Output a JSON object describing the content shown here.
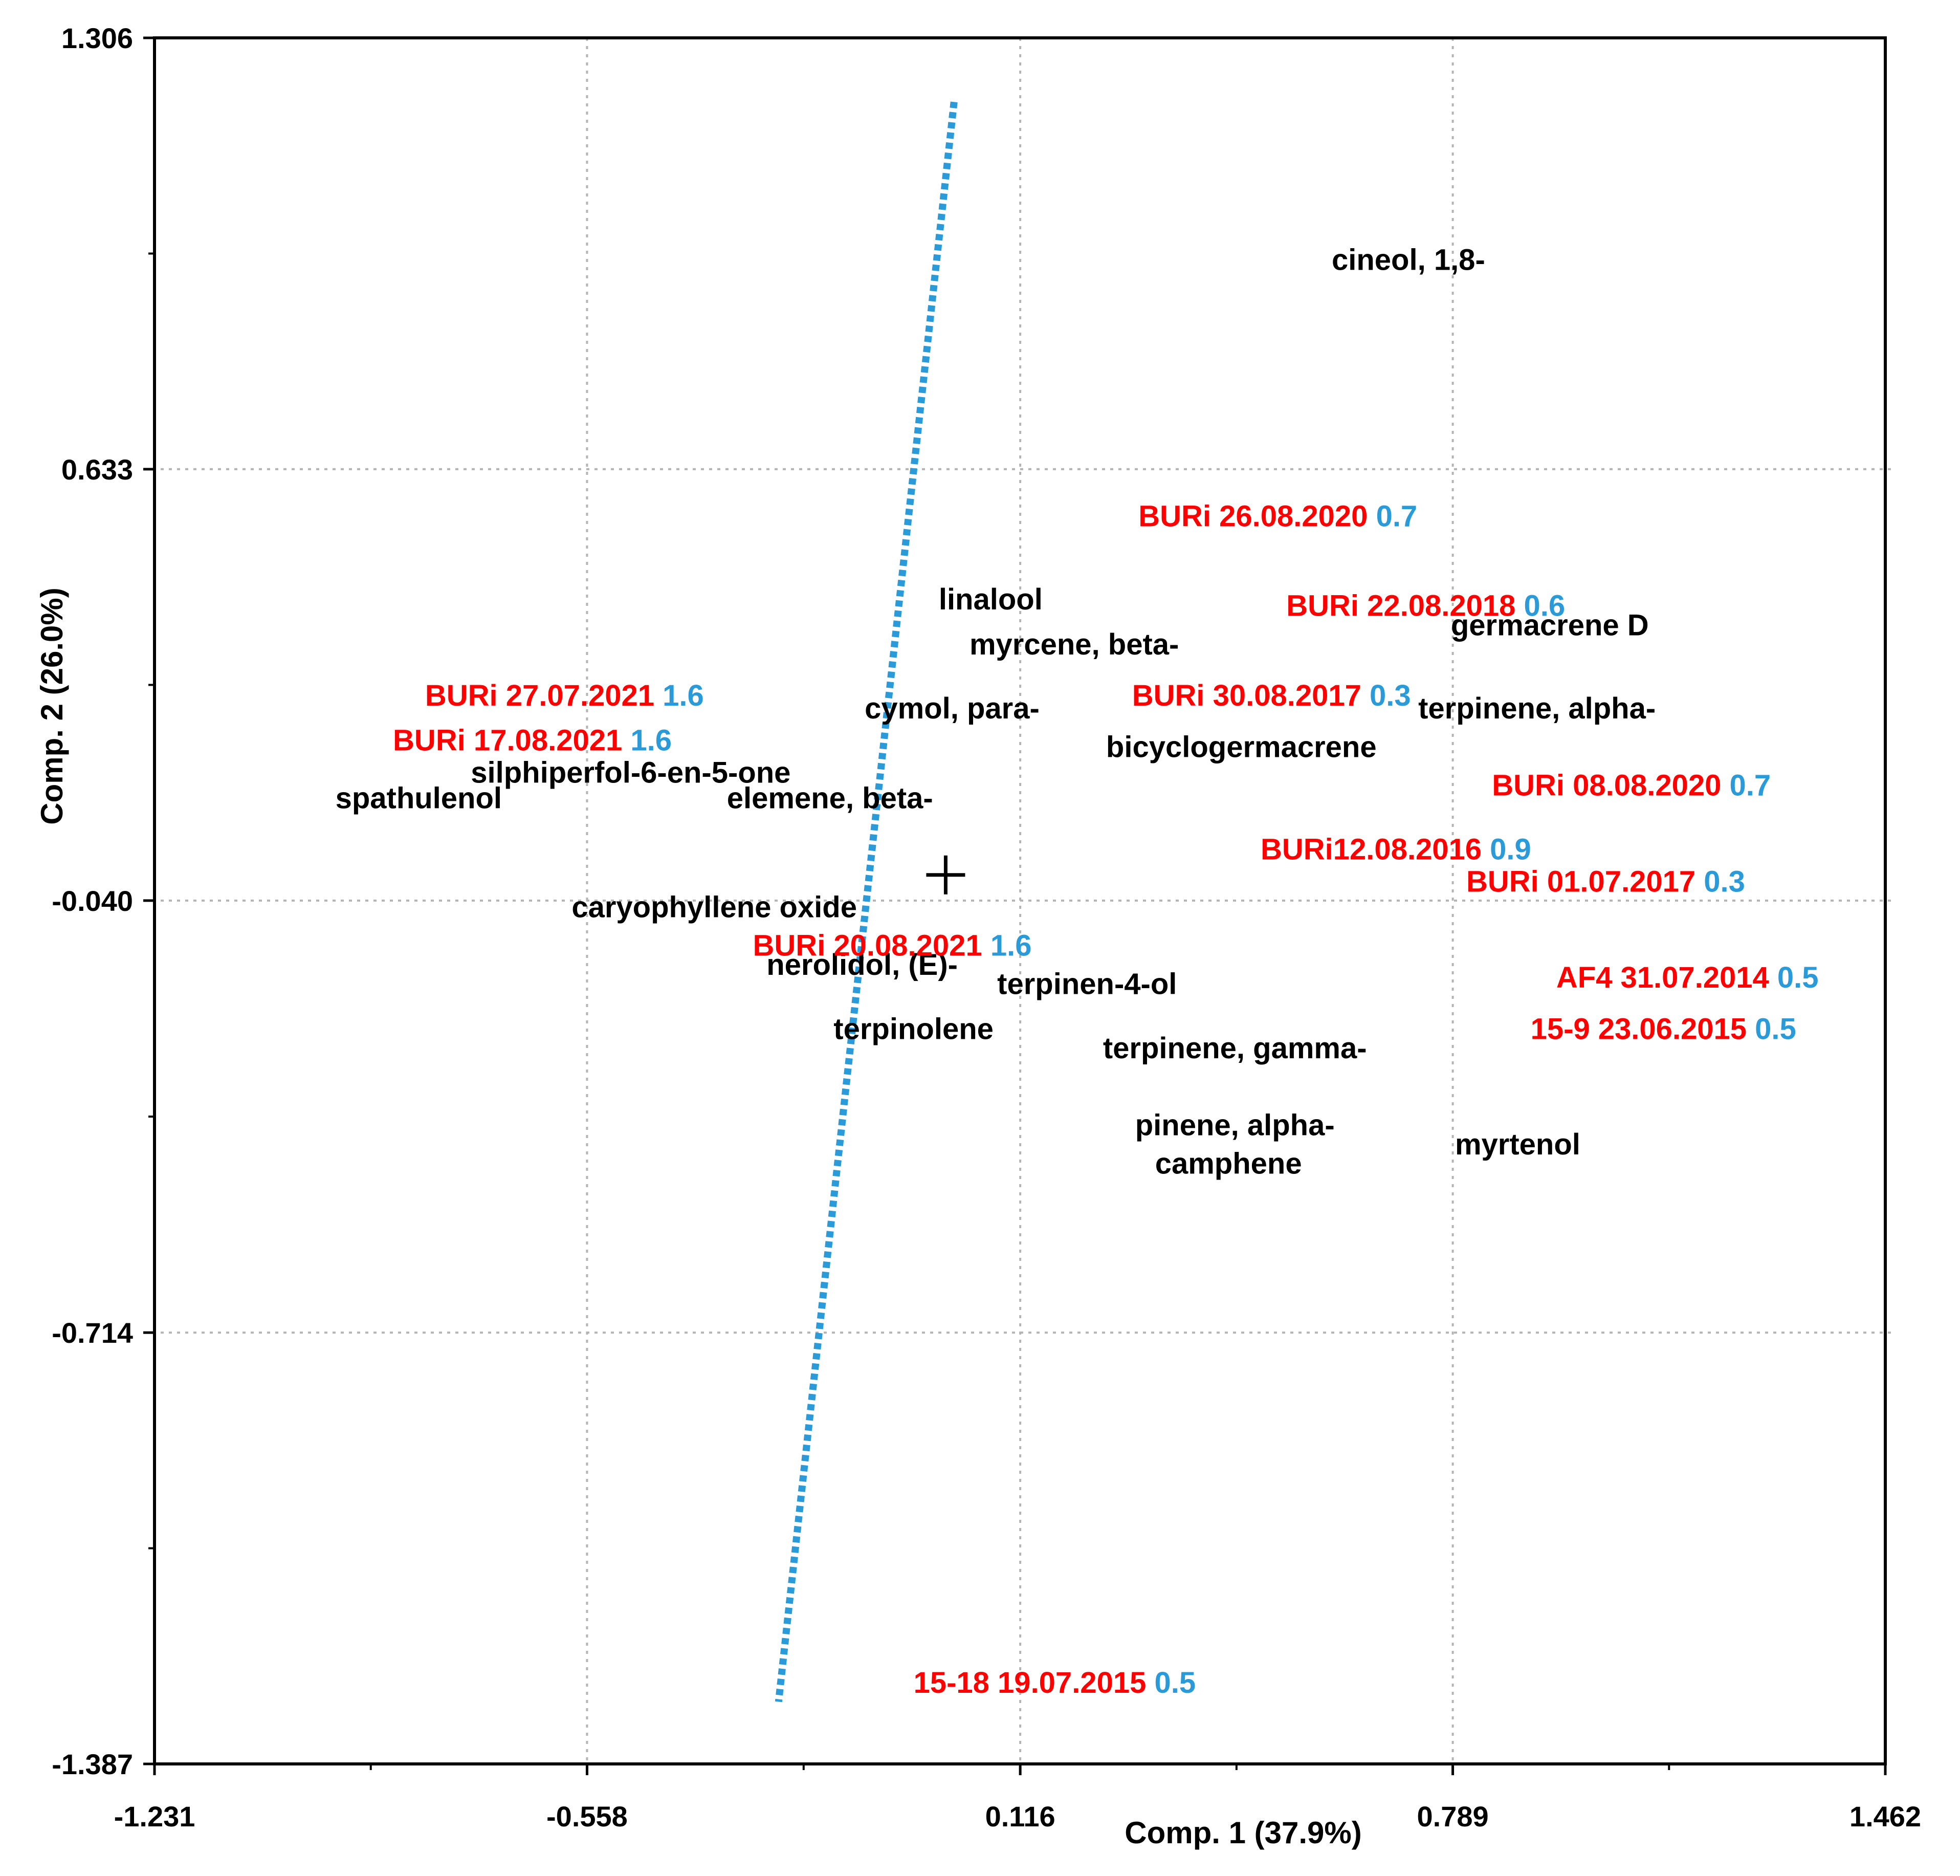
{
  "chart_data": {
    "type": "scatter",
    "title": "",
    "xlabel": "Comp. 1 (37.9%)",
    "ylabel": "Comp. 2 (26.0%)",
    "xlim": [
      -1.231,
      1.462
    ],
    "ylim": [
      -1.387,
      1.306
    ],
    "x_ticks": [
      "-1.231",
      "-0.558",
      "0.116",
      "0.789",
      "1.462"
    ],
    "y_ticks": [
      "1.306",
      "0.633",
      "-0.040",
      "-0.714",
      "-1.387"
    ],
    "grid": true,
    "colors": {
      "observation_label": "#ff0000",
      "observation_value": "#2a9ad8",
      "variable_label": "#000000",
      "trend_line": "#2a9ad8",
      "grid": "#b4b4b4",
      "axes": "#000000"
    },
    "centroid": {
      "x": 0.0,
      "y": 0.0,
      "symbol": "+"
    },
    "trend_line": {
      "start": {
        "x": 0.013,
        "y": 1.206
      },
      "end": {
        "x": -0.26,
        "y": -1.29
      }
    },
    "variables": [
      {
        "label": "cineol, 1,8-",
        "x": 0.72,
        "y": 0.96
      },
      {
        "label": "linalool",
        "x": 0.07,
        "y": 0.43
      },
      {
        "label": "germacrene D",
        "x": 0.94,
        "y": 0.39
      },
      {
        "label": "myrcene, beta-",
        "x": 0.2,
        "y": 0.36
      },
      {
        "label": "terpinene, alpha-",
        "x": 0.92,
        "y": 0.26
      },
      {
        "label": "cymol, para-",
        "x": 0.01,
        "y": 0.26
      },
      {
        "label": "bicyclogermacrene",
        "x": 0.46,
        "y": 0.2
      },
      {
        "label": "silphiperfol-6-en-5-one",
        "x": -0.49,
        "y": 0.16
      },
      {
        "label": "spathulenol",
        "x": -0.82,
        "y": 0.12
      },
      {
        "label": "elemene, beta-",
        "x": -0.18,
        "y": 0.12
      },
      {
        "label": "caryophyllene oxide",
        "x": -0.36,
        "y": -0.05
      },
      {
        "label": "nerolidol, (E)-",
        "x": -0.13,
        "y": -0.14
      },
      {
        "label": "terpinen-4-ol",
        "x": 0.22,
        "y": -0.17
      },
      {
        "label": "terpinolene",
        "x": -0.05,
        "y": -0.24
      },
      {
        "label": "terpinene, gamma-",
        "x": 0.45,
        "y": -0.27
      },
      {
        "label": "pinene, alpha-",
        "x": 0.45,
        "y": -0.39
      },
      {
        "label": "camphene",
        "x": 0.44,
        "y": -0.45
      },
      {
        "label": "myrtenol",
        "x": 0.89,
        "y": -0.42
      }
    ],
    "observations": [
      {
        "label": "BURi   26.08.2020",
        "value": "0.7",
        "x": 0.3,
        "y": 0.56
      },
      {
        "label": "BURi 22.08.2018",
        "value": "0.6",
        "x": 0.53,
        "y": 0.42
      },
      {
        "label": "BURi 27.07.2021",
        "value": "1.6",
        "x": -0.81,
        "y": 0.28
      },
      {
        "label": "BURi 30.08.2017",
        "value": "0.3",
        "x": 0.29,
        "y": 0.28
      },
      {
        "label": "BURi 17.08.2021",
        "value": "1.6",
        "x": -0.86,
        "y": 0.21
      },
      {
        "label": "BURi 08.08.2020",
        "value": "0.7",
        "x": 0.85,
        "y": 0.14
      },
      {
        "label": "BURi12.08.2016",
        "value": "0.9",
        "x": 0.49,
        "y": 0.04
      },
      {
        "label": "BURi 01.07.2017",
        "value": "0.3",
        "x": 0.81,
        "y": -0.01
      },
      {
        "label": "BURi 20.08.2021",
        "value": "1.6",
        "x": -0.3,
        "y": -0.11
      },
      {
        "label": "AF4 31.07.2014",
        "value": "0.5",
        "x": 0.95,
        "y": -0.16
      },
      {
        "label": "15-9 23.06.2015",
        "value": "0.5",
        "x": 0.91,
        "y": -0.24
      },
      {
        "label": "15-18 19.07.2015",
        "value": "0.5",
        "x": -0.05,
        "y": -1.26
      }
    ]
  }
}
